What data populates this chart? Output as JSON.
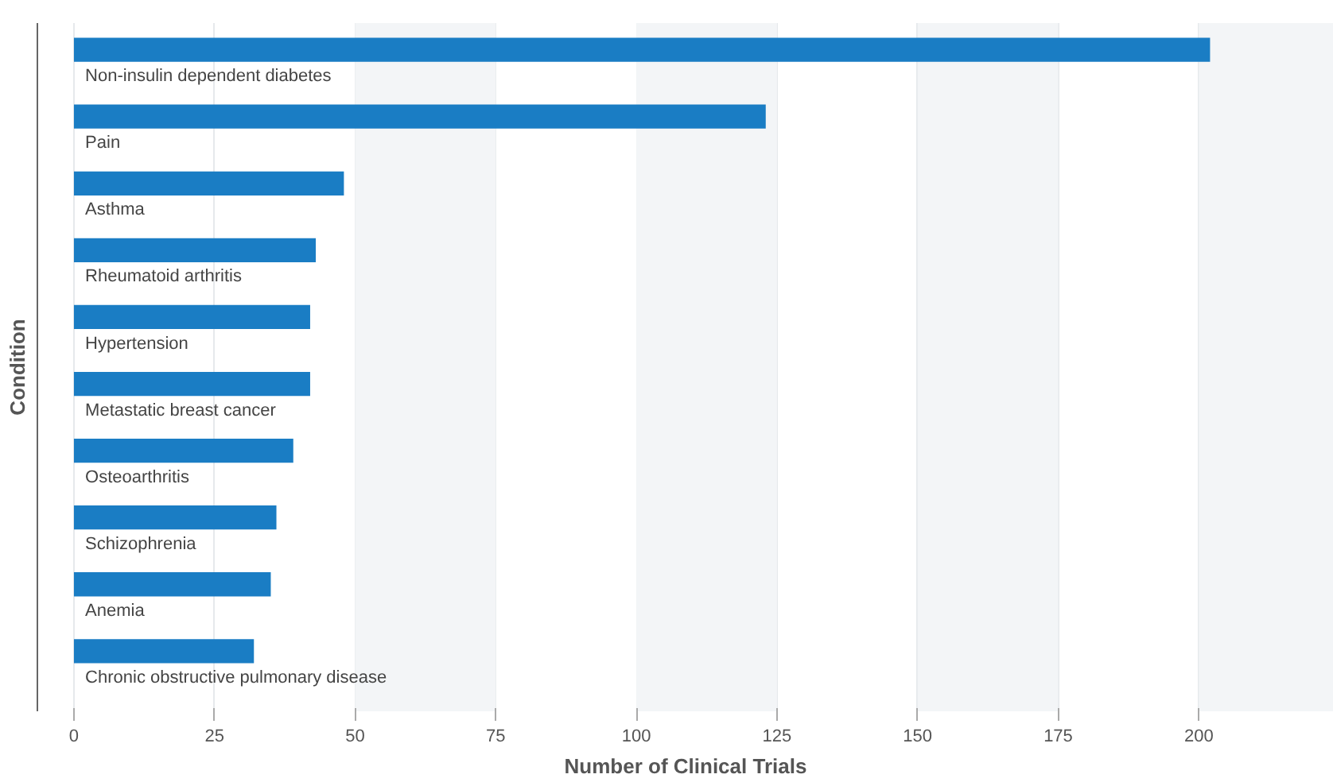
{
  "chart_data": {
    "type": "bar",
    "orientation": "horizontal",
    "xlabel": "Number of Clinical Trials",
    "ylabel": "Condition",
    "categories": [
      "Non-insulin dependent diabetes",
      "Pain",
      "Asthma",
      "Rheumatoid arthritis",
      "Hypertension",
      "Metastatic breast cancer",
      "Osteoarthritis",
      "Schizophrenia",
      "Anemia",
      "Chronic obstructive pulmonary disease"
    ],
    "values": [
      202,
      123,
      48,
      43,
      42,
      42,
      39,
      36,
      35,
      32
    ],
    "color": "#1a7dc4",
    "xlim": [
      -6.5,
      224
    ],
    "xticks": [
      0,
      25,
      50,
      75,
      100,
      125,
      150,
      175,
      200
    ],
    "grid": "x",
    "bands": [
      {
        "axis": "x",
        "from": 50,
        "to": 75,
        "color": "#f3f5f7"
      },
      {
        "axis": "x",
        "from": 100,
        "to": 125,
        "color": "#f3f5f7"
      },
      {
        "axis": "x",
        "from": 150,
        "to": 175,
        "color": "#f3f5f7"
      },
      {
        "axis": "x",
        "from": 200,
        "to": 224,
        "color": "#f3f5f7"
      }
    ]
  }
}
